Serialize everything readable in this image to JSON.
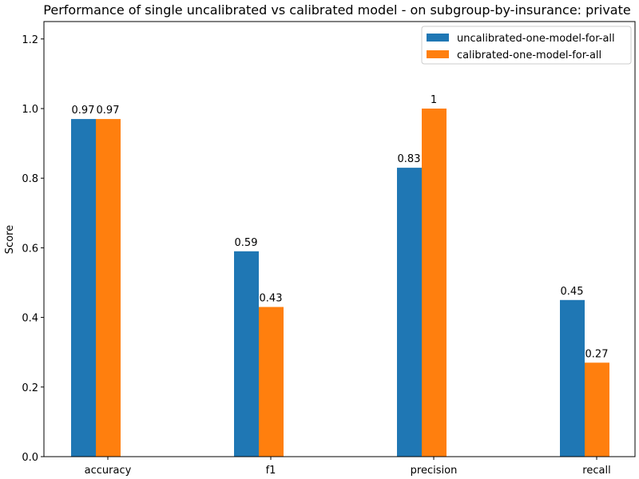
{
  "chart_data": {
    "type": "bar",
    "title": "Performance of single uncalibrated vs calibrated model - on subgroup-by-insurance: private",
    "xlabel": "",
    "ylabel": "Score",
    "ylim": [
      0,
      1.25
    ],
    "yticks": [
      0.0,
      0.2,
      0.4,
      0.6,
      0.8,
      1.0,
      1.2
    ],
    "ytick_labels": [
      "0.0",
      "0.2",
      "0.4",
      "0.6",
      "0.8",
      "1.0",
      "1.2"
    ],
    "categories": [
      "accuracy",
      "f1",
      "precision",
      "recall"
    ],
    "series": [
      {
        "name": "uncalibrated-one-model-for-all",
        "color": "#1f77b4",
        "values": [
          0.97,
          0.59,
          0.83,
          0.45
        ],
        "labels": [
          "0.97",
          "0.59",
          "0.83",
          "0.45"
        ]
      },
      {
        "name": "calibrated-one-model-for-all",
        "color": "#ff7f0e",
        "values": [
          0.97,
          0.43,
          1.0,
          0.27
        ],
        "labels": [
          "0.97",
          "0.43",
          "1",
          "0.27"
        ]
      }
    ],
    "legend_position": "top-right",
    "grid": false
  }
}
